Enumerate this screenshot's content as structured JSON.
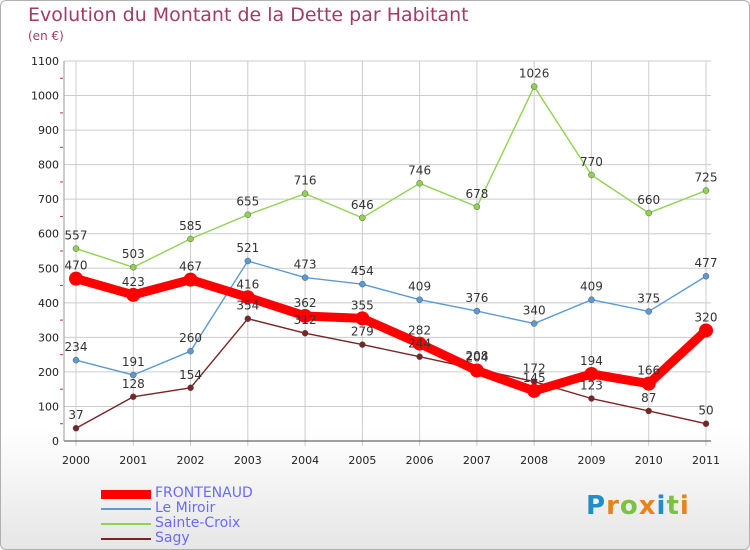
{
  "title": "Evolution du Montant de la Dette par Habitant",
  "subtitle": "(en €)",
  "logo": "Proxiti",
  "chart_data": {
    "type": "line",
    "title": "Evolution du Montant de la Dette par Habitant",
    "ylabel": "(en €)",
    "x": [
      "2000",
      "2001",
      "2002",
      "2003",
      "2004",
      "2005",
      "2006",
      "2007",
      "2008",
      "2009",
      "2010",
      "2011"
    ],
    "ylim": [
      0,
      1100
    ],
    "yticks": [
      "0",
      "100",
      "200",
      "300",
      "400",
      "500",
      "600",
      "700",
      "800",
      "900",
      "1000",
      "1100"
    ],
    "grid": true,
    "legend_position": "bottom",
    "series": [
      {
        "name": "FRONTENAUD",
        "color": "#ff0000",
        "values": [
          470,
          423,
          467,
          416,
          362,
          355,
          282,
          204,
          145,
          194,
          166,
          320
        ]
      },
      {
        "name": "Le Miroir",
        "color": "#5a9bd5",
        "values": [
          234,
          191,
          260,
          521,
          473,
          454,
          409,
          376,
          340,
          409,
          375,
          477
        ]
      },
      {
        "name": "Sainte-Croix",
        "color": "#8ed44f",
        "values": [
          557,
          503,
          585,
          655,
          716,
          646,
          746,
          678,
          1026,
          770,
          660,
          725
        ]
      },
      {
        "name": "Sagy",
        "color": "#7a2424",
        "values": [
          37,
          128,
          154,
          354,
          312,
          279,
          244,
          208,
          172,
          123,
          87,
          50
        ]
      }
    ]
  },
  "colors": {
    "title": "#a23a6a",
    "axis_text": "#222222",
    "grid": "#cccccc",
    "logo": [
      "#1f8ec9",
      "#e8821c",
      "#7bc142",
      "#e8821c",
      "#1f8ec9",
      "#7bc142",
      "#e8821c"
    ]
  }
}
